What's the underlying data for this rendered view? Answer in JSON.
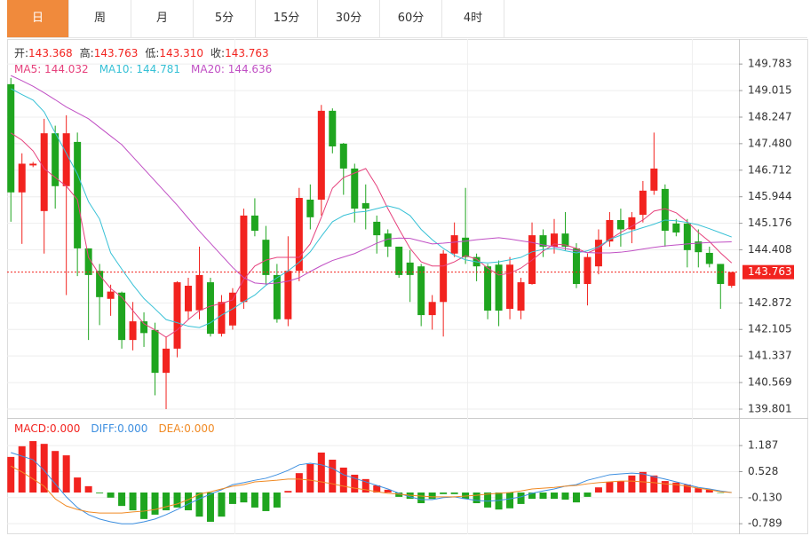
{
  "tabs": [
    "日",
    "周",
    "月",
    "5分",
    "15分",
    "30分",
    "60分",
    "4时"
  ],
  "chart_data": [
    {
      "type": "candlestick",
      "info": [
        {
          "label": "开:",
          "value": "143.368"
        },
        {
          "label": "高:",
          "value": "143.763"
        },
        {
          "label": "低:",
          "value": "143.310"
        },
        {
          "label": "收:",
          "value": "143.763"
        }
      ],
      "open": [
        149.2,
        146.07,
        146.85,
        145.53,
        147.78,
        146.25,
        147.53,
        144.45,
        143.8,
        142.99,
        143.17,
        141.8,
        142.34,
        142.09,
        140.85,
        141.55,
        142.63,
        142.66,
        143.47,
        141.98,
        142.22,
        142.9,
        145.4,
        144.7,
        143.68,
        142.4,
        143.8,
        145.86,
        145.86,
        148.43,
        147.48,
        146.76,
        145.76,
        145.22,
        144.88,
        144.5,
        144.04,
        143.93,
        142.52,
        142.9,
        144.3,
        144.76,
        144.2,
        143.93,
        143.98,
        142.7,
        142.65,
        143.42,
        144.83,
        144.5,
        144.88,
        144.45,
        143.42,
        143.93,
        144.65,
        145.27,
        145.0,
        145.42,
        146.12,
        146.17,
        145.17,
        145.17,
        144.65,
        144.32,
        144.0,
        143.368
      ],
      "high": [
        149.38,
        147.2,
        146.95,
        148.2,
        148.0,
        148.3,
        147.8,
        144.45,
        144.0,
        143.4,
        143.2,
        142.9,
        142.6,
        142.3,
        141.9,
        143.5,
        143.6,
        144.5,
        143.6,
        143.1,
        143.3,
        145.6,
        145.9,
        145.1,
        144.0,
        144.8,
        146.2,
        146.3,
        148.6,
        148.5,
        147.5,
        146.9,
        146.3,
        145.4,
        145.0,
        144.5,
        144.4,
        144.0,
        143.1,
        144.4,
        145.2,
        146.2,
        144.3,
        144.0,
        144.1,
        144.2,
        143.6,
        145.2,
        145.0,
        145.3,
        145.5,
        144.6,
        144.3,
        145.0,
        145.5,
        145.6,
        145.5,
        146.4,
        147.8,
        146.3,
        145.3,
        145.3,
        145.0,
        144.5,
        144.0,
        143.763
      ],
      "low": [
        145.22,
        144.58,
        146.8,
        144.3,
        145.6,
        143.1,
        143.65,
        141.8,
        142.23,
        142.5,
        141.55,
        141.5,
        141.6,
        140.2,
        139.8,
        141.3,
        142.4,
        142.4,
        141.9,
        141.9,
        142.1,
        142.7,
        144.8,
        143.4,
        142.3,
        142.2,
        143.5,
        145.0,
        145.4,
        147.2,
        146.0,
        145.2,
        145.0,
        144.3,
        144.2,
        143.6,
        142.9,
        142.2,
        142.1,
        141.9,
        144.2,
        144.0,
        143.5,
        142.4,
        142.2,
        142.4,
        142.4,
        143.4,
        144.2,
        144.3,
        144.4,
        143.3,
        142.8,
        143.7,
        144.5,
        144.5,
        144.6,
        145.2,
        146.0,
        144.5,
        144.8,
        143.9,
        143.9,
        143.9,
        142.7,
        143.31
      ],
      "close": [
        146.07,
        146.9,
        146.9,
        147.78,
        146.25,
        147.78,
        144.45,
        143.68,
        143.04,
        143.2,
        141.8,
        142.34,
        142.0,
        140.85,
        141.55,
        143.47,
        143.37,
        143.68,
        141.98,
        142.9,
        143.17,
        145.4,
        144.96,
        143.68,
        142.4,
        143.8,
        145.91,
        145.35,
        148.43,
        147.4,
        146.76,
        145.6,
        145.6,
        144.83,
        144.5,
        143.68,
        143.68,
        142.52,
        142.9,
        144.3,
        144.83,
        144.2,
        143.93,
        142.65,
        142.65,
        143.98,
        143.47,
        144.83,
        144.5,
        144.88,
        144.5,
        143.42,
        144.2,
        144.7,
        145.27,
        145.0,
        145.35,
        146.12,
        146.76,
        144.96,
        144.91,
        144.4,
        144.34,
        144.0,
        143.42,
        143.763
      ],
      "up_color": "#f2231f",
      "down_color": "#1fa51f",
      "lines": [
        {
          "name": "MA5: 144.032",
          "color": "#e6417c",
          "values": [
            147.79,
            147.58,
            147.27,
            146.76,
            146.5,
            146.25,
            145.86,
            144.19,
            143.68,
            143.29,
            143.04,
            142.65,
            142.27,
            142.09,
            141.88,
            142.09,
            142.39,
            142.65,
            142.78,
            142.86,
            142.96,
            143.55,
            143.94,
            144.11,
            144.19,
            144.19,
            144.19,
            144.58,
            145.35,
            146.19,
            146.5,
            146.63,
            146.76,
            146.25,
            145.6,
            145.01,
            144.45,
            144.06,
            143.94,
            143.94,
            144.06,
            144.24,
            144.14,
            143.88,
            143.68,
            143.73,
            143.88,
            144.11,
            144.37,
            144.58,
            144.55,
            144.45,
            144.32,
            144.45,
            144.71,
            144.91,
            145.09,
            145.27,
            145.53,
            145.6,
            145.48,
            145.22,
            144.91,
            144.65,
            144.32,
            144.03
          ]
        },
        {
          "name": "MA10: 144.781",
          "color": "#37c1d6",
          "values": [
            149.07,
            148.9,
            148.74,
            148.4,
            147.79,
            147.2,
            146.6,
            145.8,
            145.3,
            144.32,
            143.85,
            143.4,
            143.0,
            142.7,
            142.39,
            142.3,
            142.2,
            142.16,
            142.3,
            142.52,
            142.7,
            142.91,
            143.1,
            143.38,
            143.6,
            143.8,
            144.05,
            144.35,
            144.8,
            145.22,
            145.4,
            145.49,
            145.52,
            145.6,
            145.68,
            145.6,
            145.4,
            145.0,
            144.7,
            144.45,
            144.25,
            144.12,
            144.06,
            144.03,
            144.06,
            144.12,
            144.19,
            144.35,
            144.42,
            144.45,
            144.38,
            144.32,
            144.38,
            144.5,
            144.71,
            144.83,
            144.95,
            145.05,
            145.15,
            145.27,
            145.25,
            145.2,
            145.13,
            145.02,
            144.9,
            144.78
          ]
        },
        {
          "name": "MA20: 144.636",
          "color": "#c04fc4",
          "values": [
            149.45,
            149.3,
            149.14,
            148.95,
            148.75,
            148.54,
            148.37,
            148.2,
            147.95,
            147.7,
            147.45,
            147.1,
            146.75,
            146.4,
            146.05,
            145.7,
            145.32,
            144.95,
            144.6,
            144.25,
            143.9,
            143.6,
            143.45,
            143.42,
            143.45,
            143.5,
            143.6,
            143.78,
            143.95,
            144.1,
            144.2,
            144.3,
            144.45,
            144.6,
            144.72,
            144.75,
            144.74,
            144.66,
            144.58,
            144.6,
            144.63,
            144.66,
            144.7,
            144.73,
            144.76,
            144.72,
            144.67,
            144.62,
            144.55,
            144.5,
            144.45,
            144.38,
            144.33,
            144.32,
            144.32,
            144.34,
            144.38,
            144.43,
            144.48,
            144.52,
            144.55,
            144.58,
            144.6,
            144.62,
            144.63,
            144.64
          ]
        }
      ],
      "current_price": 143.763,
      "ylim": [
        139.57,
        150.48
      ],
      "yticks": [
        149.783,
        149.015,
        148.247,
        {
          "value": 147.48,
          "label": "147.480"
        },
        146.712,
        145.944,
        145.176,
        144.408,
        142.872,
        142.105,
        141.337,
        140.569,
        139.801
      ],
      "grid": true
    },
    {
      "type": "macd",
      "bars": {
        "name": "MACD:0.000",
        "up_color": "#f2231f",
        "down_color": "#1fa51f",
        "values": [
          0.9,
          1.17,
          1.3,
          1.23,
          1.05,
          0.94,
          0.38,
          0.16,
          -0.02,
          -0.13,
          -0.34,
          -0.45,
          -0.67,
          -0.56,
          -0.45,
          -0.38,
          -0.45,
          -0.61,
          -0.74,
          -0.61,
          -0.29,
          -0.25,
          -0.38,
          -0.47,
          -0.38,
          0.04,
          0.49,
          0.72,
          1.01,
          0.83,
          0.63,
          0.45,
          0.34,
          0.18,
          0.07,
          -0.11,
          -0.16,
          -0.27,
          -0.16,
          -0.04,
          -0.04,
          -0.16,
          -0.27,
          -0.38,
          -0.43,
          -0.4,
          -0.29,
          -0.16,
          -0.16,
          -0.16,
          -0.18,
          -0.25,
          -0.11,
          0.13,
          0.27,
          0.29,
          0.43,
          0.52,
          0.43,
          0.29,
          0.25,
          0.2,
          0.11,
          0.07,
          -0.01,
          0.0
        ]
      },
      "lines": [
        {
          "name": "DIFF:0.000",
          "color": "#3d8fe0",
          "values": [
            1.01,
            0.92,
            0.83,
            0.56,
            0.22,
            -0.11,
            -0.38,
            -0.56,
            -0.67,
            -0.74,
            -0.79,
            -0.79,
            -0.74,
            -0.67,
            -0.56,
            -0.43,
            -0.29,
            -0.16,
            -0.04,
            0.07,
            0.2,
            0.25,
            0.31,
            0.36,
            0.45,
            0.56,
            0.7,
            0.74,
            0.7,
            0.61,
            0.45,
            0.36,
            0.27,
            0.18,
            0.09,
            -0.02,
            -0.11,
            -0.18,
            -0.18,
            -0.13,
            -0.11,
            -0.16,
            -0.2,
            -0.22,
            -0.2,
            -0.16,
            -0.11,
            -0.02,
            0.04,
            0.09,
            0.16,
            0.2,
            0.31,
            0.38,
            0.45,
            0.47,
            0.49,
            0.47,
            0.4,
            0.34,
            0.27,
            0.2,
            0.13,
            0.09,
            0.04,
            0.0
          ]
        },
        {
          "name": "DEA:0.000",
          "color": "#f08a24",
          "values": [
            0.67,
            0.52,
            0.34,
            0.16,
            -0.16,
            -0.34,
            -0.43,
            -0.49,
            -0.52,
            -0.52,
            -0.52,
            -0.49,
            -0.47,
            -0.43,
            -0.36,
            -0.29,
            -0.18,
            -0.04,
            0.02,
            0.09,
            0.16,
            0.2,
            0.27,
            0.29,
            0.31,
            0.34,
            0.34,
            0.31,
            0.27,
            0.22,
            0.16,
            0.11,
            0.07,
            0.02,
            -0.02,
            -0.04,
            -0.07,
            -0.09,
            -0.11,
            -0.11,
            -0.11,
            -0.09,
            -0.07,
            -0.04,
            -0.02,
            0.0,
            0.04,
            0.09,
            0.11,
            0.13,
            0.16,
            0.18,
            0.22,
            0.25,
            0.27,
            0.29,
            0.29,
            0.27,
            0.25,
            0.22,
            0.2,
            0.16,
            0.11,
            0.07,
            0.02,
            0.0
          ]
        }
      ],
      "ylim": [
        -1.01,
        1.84
      ],
      "yticks": [
        1.187,
        0.528,
        {
          "value": -0.13,
          "label": "-0.130"
        },
        -0.789
      ],
      "grid": true
    }
  ]
}
